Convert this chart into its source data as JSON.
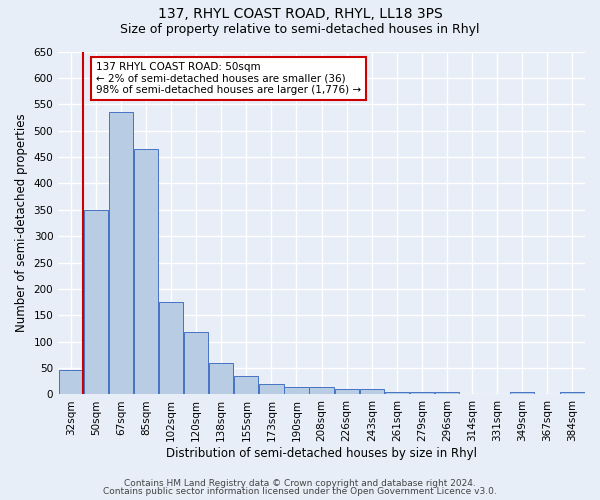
{
  "title": "137, RHYL COAST ROAD, RHYL, LL18 3PS",
  "subtitle": "Size of property relative to semi-detached houses in Rhyl",
  "xlabel": "Distribution of semi-detached houses by size in Rhyl",
  "ylabel": "Number of semi-detached properties",
  "bar_labels": [
    "32sqm",
    "50sqm",
    "67sqm",
    "85sqm",
    "102sqm",
    "120sqm",
    "138sqm",
    "155sqm",
    "173sqm",
    "190sqm",
    "208sqm",
    "226sqm",
    "243sqm",
    "261sqm",
    "279sqm",
    "296sqm",
    "314sqm",
    "331sqm",
    "349sqm",
    "367sqm",
    "384sqm"
  ],
  "bar_values": [
    46,
    350,
    535,
    465,
    175,
    118,
    60,
    35,
    20,
    15,
    15,
    10,
    10,
    5,
    5,
    5,
    0,
    0,
    5,
    0,
    5
  ],
  "bar_color": "#b8cce4",
  "bar_edge_color": "#4472c4",
  "ylim": [
    0,
    650
  ],
  "yticks": [
    0,
    50,
    100,
    150,
    200,
    250,
    300,
    350,
    400,
    450,
    500,
    550,
    600,
    650
  ],
  "marker_line_color": "#cc0000",
  "annotation_line1": "137 RHYL COAST ROAD: 50sqm",
  "annotation_line2": "← 2% of semi-detached houses are smaller (36)",
  "annotation_line3": "98% of semi-detached houses are larger (1,776) →",
  "annotation_box_color": "#cc0000",
  "footer1": "Contains HM Land Registry data © Crown copyright and database right 2024.",
  "footer2": "Contains public sector information licensed under the Open Government Licence v3.0.",
  "bg_color": "#e8eef7",
  "plot_bg_color": "#e8eef7",
  "grid_color": "#ffffff",
  "title_fontsize": 10,
  "subtitle_fontsize": 9,
  "axis_label_fontsize": 8.5,
  "tick_fontsize": 7.5,
  "footer_fontsize": 6.5
}
